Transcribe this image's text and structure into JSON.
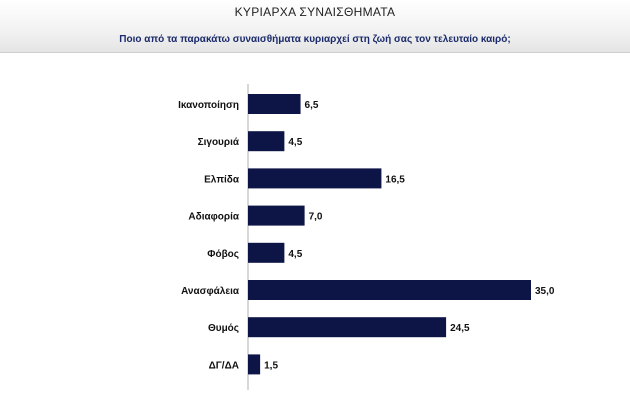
{
  "header": {
    "title": "ΚΥΡΙΑΡΧΑ ΣΥΝΑΙΣΘΗΜΑΤΑ",
    "subtitle": "Ποιο από τα παρακάτω συναισθήματα κυριαρχεί στη ζωή σας τον τελευταίο καιρό;"
  },
  "chart_data": {
    "type": "bar",
    "orientation": "horizontal",
    "title": "ΚΥΡΙΑΡΧΑ ΣΥΝΑΙΣΘΗΜΑΤΑ",
    "subtitle": "Ποιο από τα παρακάτω συναισθήματα κυριαρχεί στη ζωή σας τον τελευταίο καιρό;",
    "categories": [
      "Ικανοποίηση",
      "Σιγουριά",
      "Ελπίδα",
      "Αδιαφορία",
      "Φόβος",
      "Ανασφάλεια",
      "Θυμός",
      "ΔΓ/ΔΑ"
    ],
    "values": [
      6.5,
      4.5,
      16.5,
      7.0,
      4.5,
      35.0,
      24.5,
      1.5
    ],
    "value_labels": [
      "6,5",
      "4,5",
      "16,5",
      "7,0",
      "4,5",
      "35,0",
      "24,5",
      "1,5"
    ],
    "xlim": [
      0,
      35
    ],
    "bar_color": "#0d1446",
    "grid": false,
    "legend": "none"
  }
}
